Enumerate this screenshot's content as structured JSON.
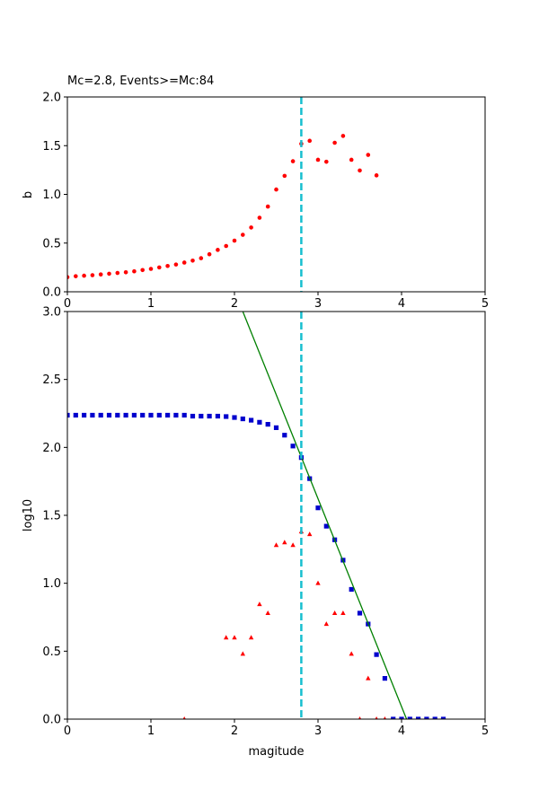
{
  "chart_data": [
    {
      "type": "scatter",
      "title": "Mc=2.8, Events>=Mc:84",
      "xlabel": "",
      "ylabel": "b",
      "xlim": [
        0,
        5
      ],
      "ylim": [
        0,
        2
      ],
      "xticks": [
        "0",
        "1",
        "2",
        "3",
        "4",
        "5"
      ],
      "yticks": [
        "0.0",
        "0.5",
        "1.0",
        "1.5",
        "2.0"
      ],
      "grid": false,
      "mc_line": {
        "x": 2.8,
        "color": "#17becf",
        "style": "dashed"
      },
      "series": [
        {
          "marker": "circle",
          "color": "#ff0000",
          "points": [
            [
              0.0,
              0.15
            ],
            [
              0.1,
              0.16
            ],
            [
              0.2,
              0.165
            ],
            [
              0.3,
              0.17
            ],
            [
              0.4,
              0.178
            ],
            [
              0.5,
              0.185
            ],
            [
              0.6,
              0.193
            ],
            [
              0.7,
              0.2
            ],
            [
              0.8,
              0.21
            ],
            [
              0.9,
              0.223
            ],
            [
              1.0,
              0.235
            ],
            [
              1.1,
              0.25
            ],
            [
              1.2,
              0.265
            ],
            [
              1.3,
              0.28
            ],
            [
              1.4,
              0.3
            ],
            [
              1.5,
              0.32
            ],
            [
              1.6,
              0.345
            ],
            [
              1.7,
              0.385
            ],
            [
              1.8,
              0.43
            ],
            [
              1.9,
              0.47
            ],
            [
              2.0,
              0.525
            ],
            [
              2.1,
              0.585
            ],
            [
              2.2,
              0.66
            ],
            [
              2.3,
              0.76
            ],
            [
              2.4,
              0.875
            ],
            [
              2.5,
              1.05
            ],
            [
              2.6,
              1.19
            ],
            [
              2.7,
              1.34
            ],
            [
              2.8,
              1.52
            ],
            [
              2.9,
              1.55
            ],
            [
              3.0,
              1.355
            ],
            [
              3.1,
              1.335
            ],
            [
              3.2,
              1.53
            ],
            [
              3.3,
              1.6
            ],
            [
              3.4,
              1.355
            ],
            [
              3.5,
              1.245
            ],
            [
              3.6,
              1.405
            ],
            [
              3.7,
              1.195
            ]
          ]
        }
      ]
    },
    {
      "type": "scatter",
      "title": "",
      "xlabel": "magitude",
      "ylabel": "log10",
      "xlim": [
        0,
        5
      ],
      "ylim": [
        0,
        3
      ],
      "xticks": [
        "0",
        "1",
        "2",
        "3",
        "4",
        "5"
      ],
      "yticks": [
        "0.0",
        "0.5",
        "1.0",
        "1.5",
        "2.0",
        "2.5",
        "3.0"
      ],
      "grid": false,
      "mc_line": {
        "x": 2.8,
        "color": "#17becf",
        "style": "dashed"
      },
      "fit_line": {
        "color": "#008000",
        "points": [
          [
            2.1,
            3.0
          ],
          [
            4.06,
            0.0
          ]
        ]
      },
      "series": [
        {
          "marker": "square",
          "color": "#0000cd",
          "points": [
            [
              0.0,
              2.237
            ],
            [
              0.1,
              2.237
            ],
            [
              0.2,
              2.237
            ],
            [
              0.3,
              2.237
            ],
            [
              0.4,
              2.237
            ],
            [
              0.5,
              2.237
            ],
            [
              0.6,
              2.237
            ],
            [
              0.7,
              2.237
            ],
            [
              0.8,
              2.237
            ],
            [
              0.9,
              2.237
            ],
            [
              1.0,
              2.237
            ],
            [
              1.1,
              2.237
            ],
            [
              1.2,
              2.237
            ],
            [
              1.3,
              2.237
            ],
            [
              1.4,
              2.237
            ],
            [
              1.5,
              2.23
            ],
            [
              1.6,
              2.23
            ],
            [
              1.7,
              2.23
            ],
            [
              1.8,
              2.23
            ],
            [
              1.9,
              2.227
            ],
            [
              2.0,
              2.22
            ],
            [
              2.1,
              2.21
            ],
            [
              2.2,
              2.2
            ],
            [
              2.3,
              2.185
            ],
            [
              2.4,
              2.17
            ],
            [
              2.5,
              2.145
            ],
            [
              2.6,
              2.09
            ],
            [
              2.7,
              2.01
            ],
            [
              2.8,
              1.925
            ],
            [
              2.9,
              1.77
            ],
            [
              3.0,
              1.555
            ],
            [
              3.1,
              1.42
            ],
            [
              3.2,
              1.32
            ],
            [
              3.3,
              1.17
            ],
            [
              3.4,
              0.955
            ],
            [
              3.5,
              0.78
            ],
            [
              3.6,
              0.7
            ],
            [
              3.7,
              0.475
            ],
            [
              3.8,
              0.3
            ],
            [
              3.9,
              0.0
            ],
            [
              4.0,
              0.0
            ],
            [
              4.1,
              0.0
            ],
            [
              4.2,
              0.0
            ],
            [
              4.3,
              0.0
            ],
            [
              4.4,
              0.0
            ],
            [
              4.5,
              0.0
            ]
          ]
        },
        {
          "marker": "triangle",
          "color": "#ff0000",
          "points": [
            [
              1.4,
              0.0
            ],
            [
              1.9,
              0.6
            ],
            [
              2.0,
              0.6
            ],
            [
              2.1,
              0.48
            ],
            [
              2.2,
              0.6
            ],
            [
              2.3,
              0.845
            ],
            [
              2.4,
              0.78
            ],
            [
              2.5,
              1.28
            ],
            [
              2.6,
              1.3
            ],
            [
              2.7,
              1.28
            ],
            [
              2.8,
              1.38
            ],
            [
              2.9,
              1.36
            ],
            [
              3.0,
              1.0
            ],
            [
              3.1,
              0.7
            ],
            [
              3.2,
              0.78
            ],
            [
              3.3,
              0.78
            ],
            [
              3.4,
              0.48
            ],
            [
              3.5,
              0.0
            ],
            [
              3.6,
              0.3
            ],
            [
              3.7,
              0.0
            ],
            [
              3.8,
              0.0
            ]
          ]
        }
      ]
    }
  ]
}
